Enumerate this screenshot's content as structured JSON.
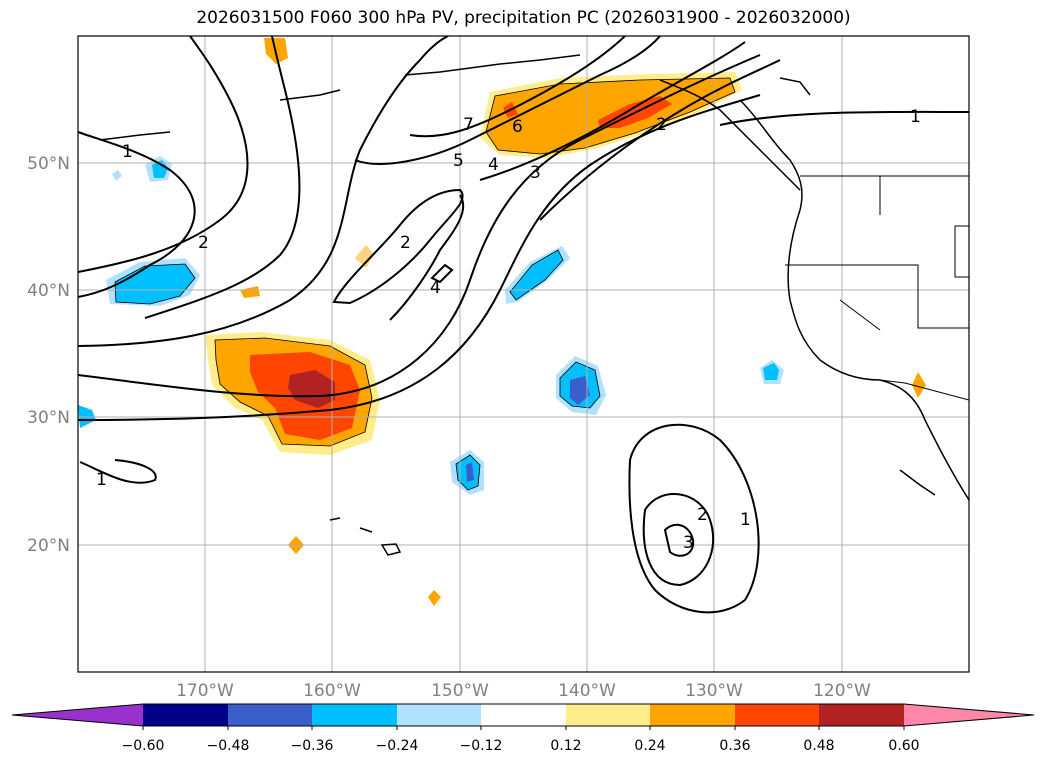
{
  "title": "2026031500 F060 300 hPa PV, precipitation PC (2026031900 - 2026032000)",
  "lat_ticks": [
    "50°N",
    "40°N",
    "30°N",
    "20°N"
  ],
  "lon_ticks": [
    "170°W",
    "160°W",
    "150°W",
    "140°W",
    "130°W",
    "120°W"
  ],
  "colorbar": {
    "tick_labels": [
      "−0.60",
      "−0.48",
      "−0.36",
      "−0.24",
      "−0.12",
      "0.12",
      "0.24",
      "0.36",
      "0.48",
      "0.60"
    ],
    "colors": [
      "#9932CC",
      "#00008B",
      "#3A5FCD",
      "#00BFFF",
      "#B0E2FF",
      "#FFFFFF",
      "#FFEC8B",
      "#FFA500",
      "#FF4500",
      "#B22222",
      "#FF88AA"
    ]
  },
  "contour_labels": [
    "1",
    "1",
    "1",
    "1",
    "2",
    "2",
    "2",
    "2",
    "3",
    "3",
    "4",
    "4",
    "5",
    "6",
    "7"
  ]
}
